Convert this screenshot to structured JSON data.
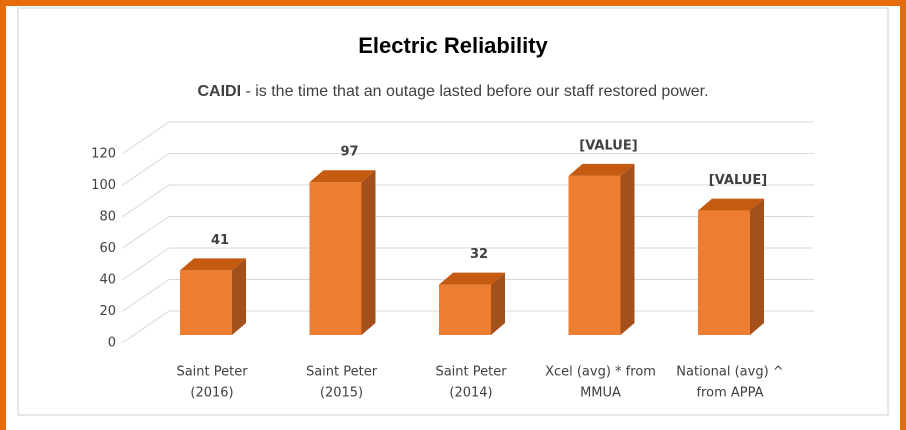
{
  "chart_data": {
    "type": "bar3d",
    "title": "Electric Reliability",
    "subtitle": [
      "CAIDI",
      " - is the time that an outage lasted before our staff restored power."
    ],
    "categories": [
      [
        "Saint Peter",
        "(2016)"
      ],
      [
        "Saint Peter",
        "(2015)"
      ],
      [
        "Saint Peter",
        "(2014)"
      ],
      [
        "Xcel (avg) * from",
        "MMUA"
      ],
      [
        "National (avg) ^",
        "from APPA"
      ]
    ],
    "values": [
      41,
      97,
      32,
      101,
      79
    ],
    "value_labels": [
      "41",
      "97",
      "32",
      "[VALUE]",
      "[VALUE]"
    ],
    "color": "#ed7d31",
    "ylim": [
      0,
      120
    ],
    "yticks": [
      0,
      20,
      40,
      60,
      80,
      100,
      120
    ],
    "grid": true
  }
}
